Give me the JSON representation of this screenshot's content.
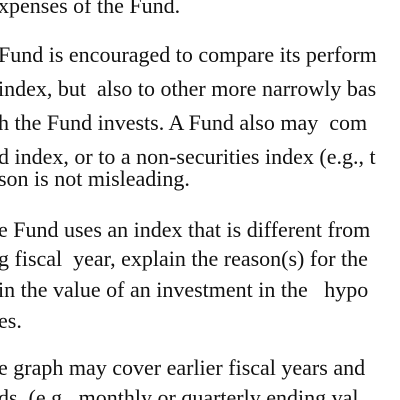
{
  "document": {
    "paragraphs": [
      {
        "lines": [
          "xpenses of the Fund."
        ]
      },
      {
        "lines": [
          "Fund is encouraged to compare its perform",
          "index, but  also to other more narrowly bas",
          "h the Fund invests. A Fund also may  com",
          "d index, or to a non-securities index (e.g., t",
          "son is not misleading."
        ]
      },
      {
        "lines": [
          "e Fund uses an index that is different from",
          "g fiscal  year, explain the reason(s) for the",
          "in the value of an investment in the   hypo",
          "es."
        ]
      },
      {
        "lines": [
          "e graph may cover earlier fiscal years and",
          "ds  (e.g., monthly or quarterly ending val"
        ]
      }
    ]
  }
}
